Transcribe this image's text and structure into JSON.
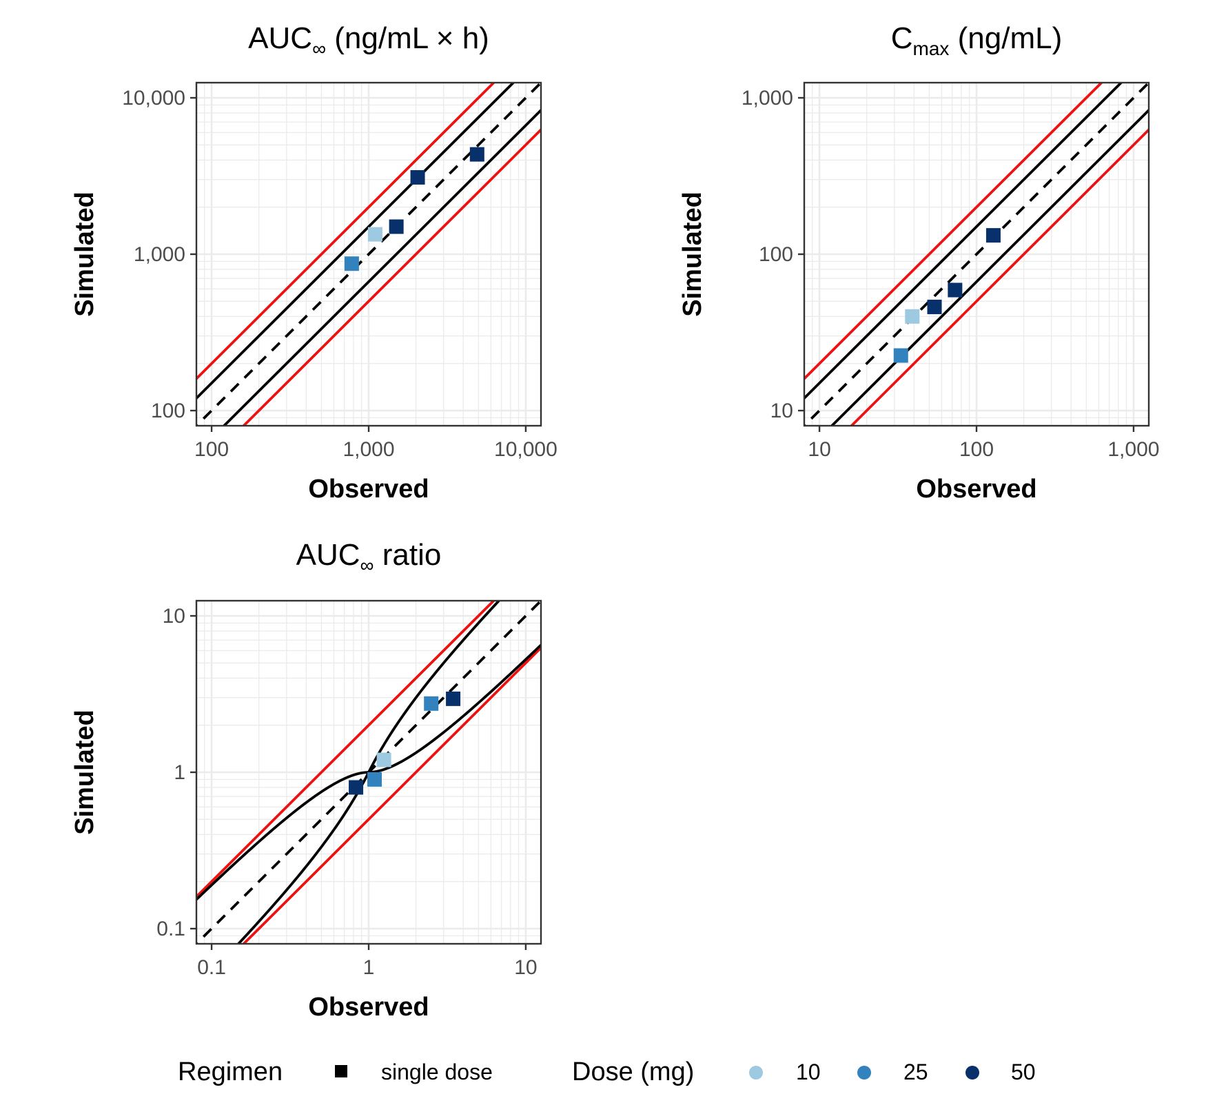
{
  "chart_data": [
    {
      "type": "scatter",
      "id": "auc",
      "title_main": "AUC",
      "title_sub": "∞",
      "title_rest": " (ng/mL × h)",
      "xlabel": "Observed",
      "ylabel": "Simulated",
      "scale": "log10",
      "xlim": [
        80,
        12500
      ],
      "ylim": [
        80,
        12500
      ],
      "ticks": [
        100,
        1000,
        10000
      ],
      "tick_labels": [
        "100",
        "1,000",
        "10,000"
      ],
      "grid": true,
      "reference_lines": {
        "identity": "dashed black",
        "twofold": "solid black",
        "limits": "solid red"
      },
      "points": [
        {
          "x": 780,
          "y": 870,
          "dose": 25
        },
        {
          "x": 1100,
          "y": 1340,
          "dose": 10
        },
        {
          "x": 1500,
          "y": 1500,
          "dose": 50
        },
        {
          "x": 2050,
          "y": 3100,
          "dose": 50
        },
        {
          "x": 4900,
          "y": 4350,
          "dose": 50
        }
      ]
    },
    {
      "type": "scatter",
      "id": "cmax",
      "title_main": "C",
      "title_sub": "max",
      "title_rest": " (ng/mL)",
      "xlabel": "Observed",
      "ylabel": "Simulated",
      "scale": "log10",
      "xlim": [
        8,
        1250
      ],
      "ylim": [
        8,
        1250
      ],
      "ticks": [
        10,
        100,
        1000
      ],
      "tick_labels": [
        "10",
        "100",
        "1,000"
      ],
      "grid": true,
      "reference_lines": {
        "identity": "dashed black",
        "twofold": "solid black",
        "limits": "solid red"
      },
      "points": [
        {
          "x": 33,
          "y": 22.5,
          "dose": 25
        },
        {
          "x": 39,
          "y": 40,
          "dose": 10
        },
        {
          "x": 54,
          "y": 46,
          "dose": 50
        },
        {
          "x": 73,
          "y": 59,
          "dose": 50
        },
        {
          "x": 128,
          "y": 132,
          "dose": 50
        }
      ]
    },
    {
      "type": "scatter",
      "id": "ratio",
      "title_main": "AUC",
      "title_sub": "∞",
      "title_rest": " ratio",
      "xlabel": "Observed",
      "ylabel": "Simulated",
      "scale": "log10",
      "xlim": [
        0.08,
        12.5
      ],
      "ylim": [
        0.08,
        12.5
      ],
      "ticks": [
        0.1,
        1,
        10
      ],
      "tick_labels": [
        "0.1",
        "1",
        "10"
      ],
      "grid": true,
      "reference_lines": {
        "identity": "dashed black",
        "guest_limits": "solid black curve",
        "limits": "solid red"
      },
      "points": [
        {
          "x": 0.83,
          "y": 0.8,
          "dose": 50
        },
        {
          "x": 1.09,
          "y": 0.9,
          "dose": 25
        },
        {
          "x": 1.25,
          "y": 1.2,
          "dose": 10
        },
        {
          "x": 2.5,
          "y": 2.75,
          "dose": 25
        },
        {
          "x": 3.45,
          "y": 2.95,
          "dose": 50
        }
      ]
    }
  ],
  "legend": {
    "placement": "bottom",
    "regimen_title": "Regimen",
    "regimen_label": "single dose",
    "dose_title": "Dose (mg)",
    "doses": [
      {
        "label": "10",
        "value": 10,
        "color": "#9ecae1"
      },
      {
        "label": "25",
        "value": 25,
        "color": "#3182bd"
      },
      {
        "label": "50",
        "value": 50,
        "color": "#08306b"
      }
    ]
  },
  "colors": {
    "red": "#ee1111",
    "black": "#000000",
    "grid": "#ebebeb"
  }
}
